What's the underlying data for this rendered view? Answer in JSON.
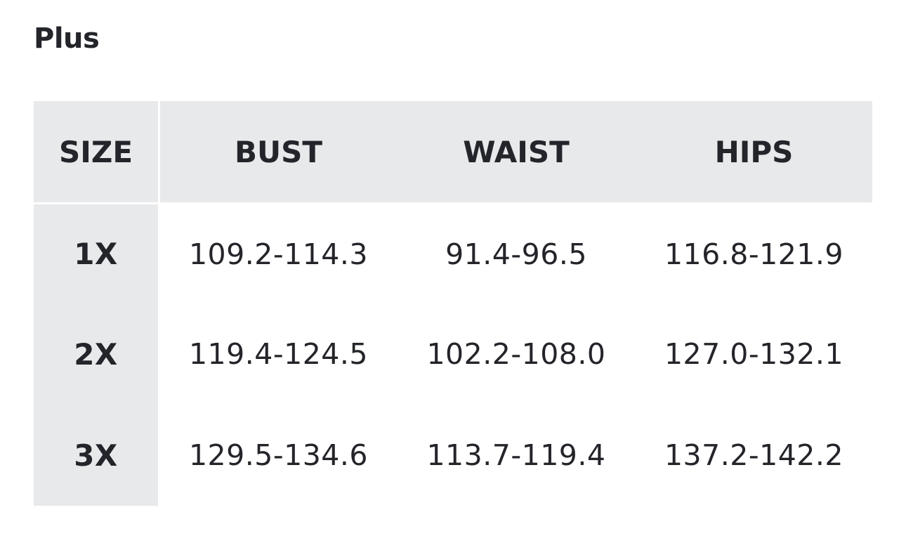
{
  "title": "Plus",
  "table": {
    "headers": [
      "SIZE",
      "BUST",
      "WAIST",
      "HIPS"
    ],
    "rows": [
      [
        "1X",
        "109.2-114.3",
        "91.4-96.5",
        "116.8-121.9"
      ],
      [
        "2X",
        "119.4-124.5",
        "102.2-108.0",
        "127.0-132.1"
      ],
      [
        "3X",
        "129.5-134.6",
        "113.7-119.4",
        "137.2-142.2"
      ]
    ]
  },
  "colors": {
    "header_bg": "#e8e9eb",
    "text": "#24252a"
  }
}
